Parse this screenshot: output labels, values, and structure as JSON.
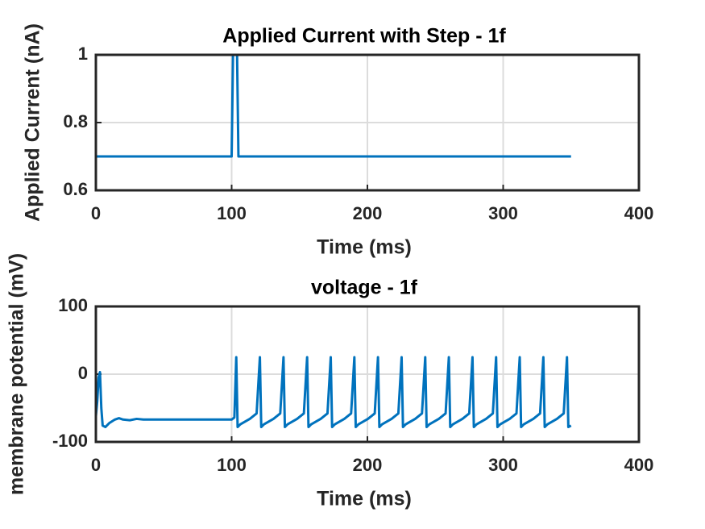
{
  "chart_data": [
    {
      "type": "line",
      "title": "Applied Current with Step - 1f",
      "x_label": "Time (ms)",
      "y_label": "Applied Current (nA)",
      "xlim": [
        0,
        400
      ],
      "xticks": [
        0,
        100,
        200,
        300,
        400
      ],
      "ylim": [
        0.6,
        1
      ],
      "yticks": [
        0.6,
        0.8,
        1
      ],
      "grid": true,
      "series": [
        {
          "color": "#0072bd",
          "x": [
            0,
            100,
            101,
            104,
            105,
            350
          ],
          "values": [
            0.7,
            0.7,
            1,
            1,
            0.7,
            0.7
          ]
        }
      ]
    },
    {
      "type": "line",
      "title": "voltage - 1f",
      "x_label": "Time (ms)",
      "y_label": "membrane potential (mV)",
      "xlim": [
        0,
        400
      ],
      "xticks": [
        0,
        100,
        200,
        300,
        400
      ],
      "ylim": [
        -100,
        100
      ],
      "yticks": [
        -100,
        0,
        100
      ],
      "grid": true,
      "series": [
        {
          "color": "#0072bd",
          "x": [
            0,
            1,
            2,
            3,
            4,
            5,
            7,
            10,
            14,
            17,
            20,
            25,
            30,
            35,
            40,
            50,
            60,
            80,
            100,
            102,
            103.4,
            104.4,
            106.4,
            113.4,
            118.4,
            120.8,
            121.8,
            123.8,
            130.8,
            135.8,
            138.2,
            139.2,
            141.2,
            148.2,
            153.2,
            155.6,
            156.6,
            158.6,
            165.6,
            170.6,
            173,
            174,
            176,
            183,
            188,
            190.4,
            191.4,
            193.4,
            200.4,
            205.4,
            207.8,
            208.8,
            210.8,
            217.8,
            222.8,
            225.2,
            226.2,
            228.2,
            235.2,
            240.2,
            242.6,
            243.6,
            245.6,
            252.6,
            257.6,
            260,
            261,
            263,
            270,
            275,
            277.4,
            278.4,
            280.4,
            287.4,
            292.4,
            294.8,
            295.8,
            297.8,
            304.8,
            309.8,
            312.2,
            313.2,
            315.2,
            322.2,
            327.2,
            329.6,
            330.6,
            332.6,
            339.6,
            344.6,
            347,
            348,
            350
          ],
          "values": [
            -62,
            -40,
            -5,
            3,
            -50,
            -76,
            -78,
            -72,
            -67,
            -65,
            -67,
            -68,
            -66,
            -67,
            -67,
            -67,
            -67,
            -67,
            -67,
            -64,
            25,
            -78,
            -74,
            -66,
            -58,
            25,
            -78,
            -74,
            -66,
            -58,
            25,
            -78,
            -74,
            -66,
            -58,
            25,
            -78,
            -74,
            -66,
            -58,
            25,
            -78,
            -74,
            -66,
            -58,
            25,
            -78,
            -74,
            -66,
            -58,
            25,
            -78,
            -74,
            -66,
            -58,
            25,
            -78,
            -74,
            -66,
            -58,
            25,
            -78,
            -74,
            -66,
            -58,
            25,
            -78,
            -74,
            -66,
            -58,
            25,
            -78,
            -74,
            -66,
            -58,
            25,
            -78,
            -74,
            -66,
            -58,
            25,
            -78,
            -74,
            -66,
            -58,
            25,
            -78,
            -74,
            -66,
            -58,
            25,
            -78,
            -76
          ]
        }
      ]
    }
  ]
}
